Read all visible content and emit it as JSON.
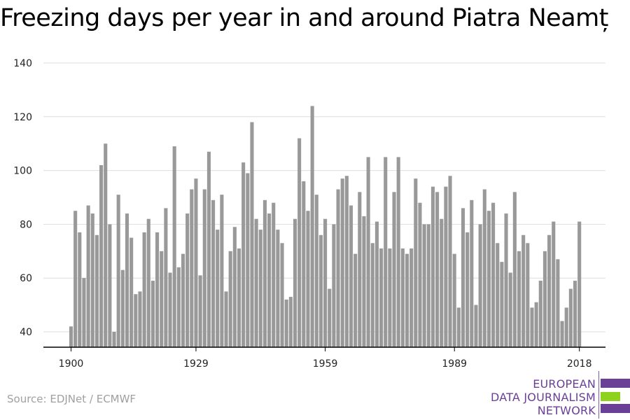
{
  "chart_data": {
    "type": "bar",
    "title": "Freezing days per year in and around Piatra Neamț",
    "xlabel": "",
    "ylabel": "",
    "x_start": 1900,
    "x_end": 2018,
    "x_ticks": [
      "1900",
      "1929",
      "1959",
      "1989",
      "2018"
    ],
    "y_ticks": [
      "40",
      "60",
      "80",
      "100",
      "120",
      "140"
    ],
    "ylim": [
      34,
      140
    ],
    "grid": true,
    "bar_color": "#999999",
    "values": [
      42,
      85,
      77,
      60,
      87,
      84,
      76,
      102,
      110,
      80,
      40,
      91,
      63,
      84,
      75,
      54,
      55,
      77,
      82,
      59,
      77,
      70,
      86,
      62,
      109,
      64,
      69,
      84,
      93,
      97,
      61,
      93,
      107,
      89,
      78,
      91,
      55,
      70,
      79,
      71,
      103,
      99,
      118,
      82,
      78,
      89,
      84,
      88,
      78,
      73,
      52,
      53,
      82,
      112,
      96,
      85,
      124,
      91,
      76,
      82,
      56,
      80,
      93,
      97,
      98,
      87,
      69,
      92,
      83,
      105,
      73,
      81,
      71,
      105,
      71,
      92,
      105,
      71,
      69,
      71,
      97,
      88,
      80,
      80,
      94,
      92,
      82,
      94,
      98,
      69,
      49,
      86,
      77,
      89,
      50,
      80,
      93,
      85,
      88,
      73,
      66,
      84,
      62,
      92,
      70,
      76,
      73,
      49,
      51,
      59,
      70,
      76,
      81,
      67,
      44,
      49,
      56,
      59,
      81
    ]
  },
  "source": "Source: EDJNet / ECMWF",
  "logo": {
    "lines": [
      "EUROPEAN",
      "DATA JOURNALISM",
      "NETWORK"
    ],
    "text_color": "#6a3f96",
    "bar_colors": [
      "#6a3f96",
      "#8ed11f",
      "#6a3f96"
    ]
  }
}
